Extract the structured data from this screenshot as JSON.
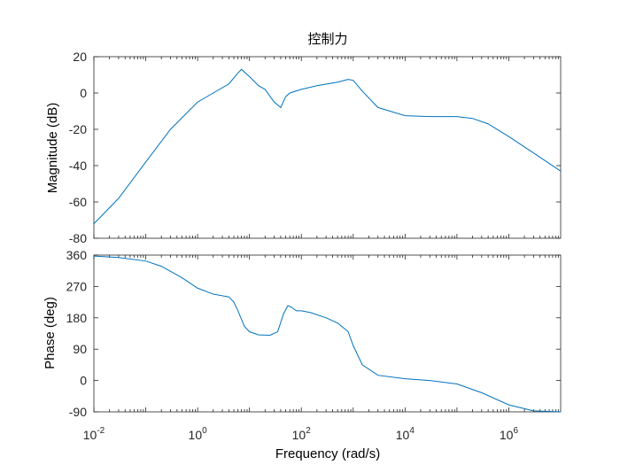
{
  "figure": {
    "title": "控制力",
    "colors": {
      "series": "#0072BD",
      "axis": "#262626",
      "background": "#FFFFFF"
    }
  },
  "chart_data": [
    {
      "type": "line",
      "ylabel": "Magnitude (dB)",
      "xscale": "log",
      "xlim": [
        0.01,
        10000000
      ],
      "ylim": [
        -80,
        20
      ],
      "yticks": [
        20,
        0,
        -20,
        -40,
        -60,
        -80
      ],
      "grid": false,
      "series": [
        {
          "x": [
            0.01,
            0.03,
            0.1,
            0.3,
            1,
            2,
            4,
            6,
            7,
            10,
            15,
            20,
            30,
            40,
            50,
            60,
            100,
            200,
            500,
            800,
            1000,
            1500,
            3000,
            10000,
            30000,
            100000,
            200000,
            400000,
            1000000,
            3000000,
            10000000
          ],
          "y": [
            -72,
            -58,
            -38,
            -20,
            -5,
            0,
            5,
            11,
            13,
            9,
            4,
            2,
            -5,
            -8,
            -2,
            0,
            2,
            4,
            6,
            7.5,
            7,
            1,
            -8,
            -12.5,
            -13,
            -13,
            -14,
            -17,
            -24,
            -33,
            -43
          ]
        }
      ]
    },
    {
      "type": "line",
      "ylabel": "Phase (deg)",
      "xlabel": "Frequency  (rad/s)",
      "xscale": "log",
      "xlim": [
        0.01,
        10000000
      ],
      "ylim": [
        -90,
        360
      ],
      "yticks": [
        360,
        270,
        180,
        90,
        0,
        -90
      ],
      "xticks": [
        0.01,
        1,
        100,
        10000,
        1000000
      ],
      "xtick_labels": [
        "10-2",
        "100",
        "102",
        "104",
        "106"
      ],
      "grid": false,
      "series": [
        {
          "x": [
            0.01,
            0.03,
            0.1,
            0.2,
            0.5,
            1,
            2,
            4,
            5,
            6,
            8,
            10,
            15,
            25,
            35,
            45,
            55,
            65,
            80,
            100,
            150,
            300,
            500,
            800,
            1000,
            1500,
            3000,
            10000,
            30000,
            100000,
            300000,
            1000000,
            3000000,
            10000000
          ],
          "y": [
            357,
            353,
            343,
            328,
            295,
            265,
            248,
            240,
            225,
            200,
            155,
            140,
            131,
            130,
            140,
            190,
            215,
            210,
            200,
            200,
            195,
            180,
            165,
            140,
            100,
            45,
            15,
            5,
            0,
            -10,
            -35,
            -70,
            -87,
            -90
          ]
        }
      ]
    }
  ]
}
